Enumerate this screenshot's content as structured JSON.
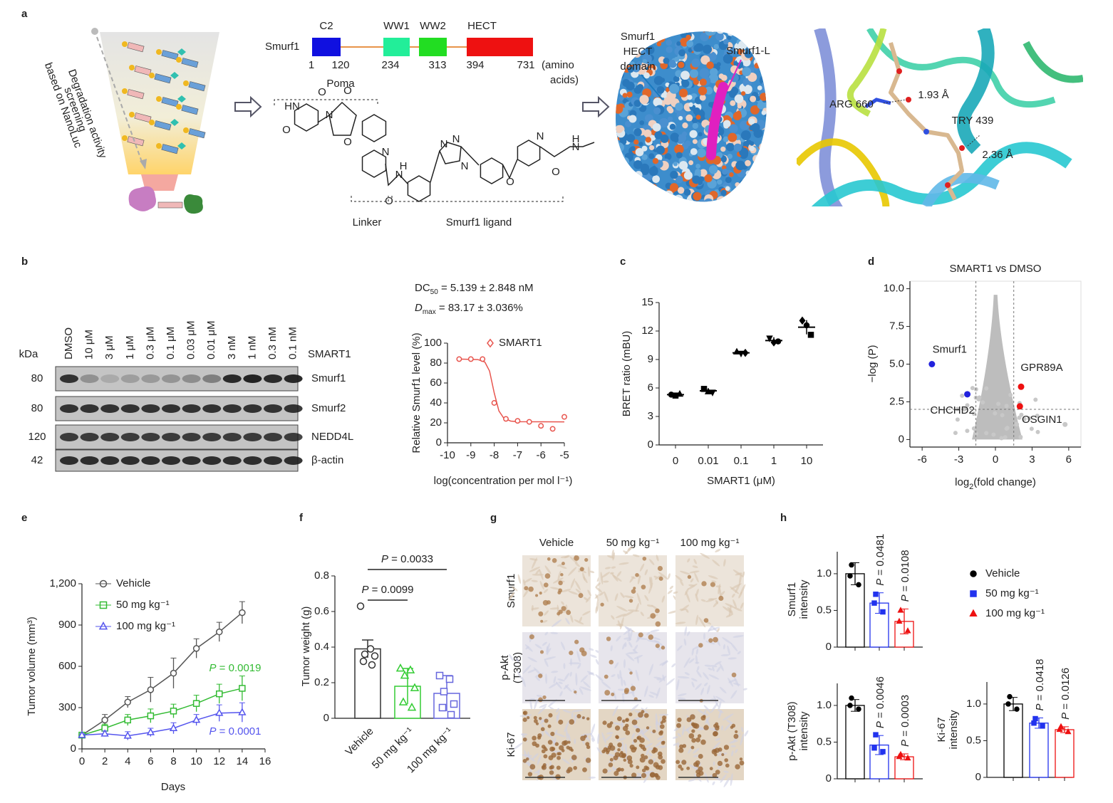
{
  "panel_labels": [
    "a",
    "b",
    "c",
    "d",
    "e",
    "f",
    "g",
    "h"
  ],
  "panel_a": {
    "screening": [
      "Degradation activity",
      "screening",
      "based on NanoLuc"
    ],
    "protein": "Smurf1",
    "domains": [
      {
        "name": "C2",
        "color": "#1010e0"
      },
      {
        "name": "WW1",
        "color": "#22ee99"
      },
      {
        "name": "WW2",
        "color": "#22dd22"
      },
      {
        "name": "HECT",
        "color": "#ee1111"
      }
    ],
    "positions": [
      1,
      120,
      234,
      313,
      394,
      731
    ],
    "position_unit": [
      "(amino",
      "acids)"
    ],
    "molecule_parts": [
      "Poma",
      "Linker",
      "Smurf1 ligand"
    ],
    "atoms": [
      "HN",
      "O",
      "O",
      "N",
      "O",
      "O",
      "N",
      "N",
      "H",
      "O",
      "N",
      "N",
      "N",
      "O",
      "N",
      "N",
      "H",
      "O"
    ],
    "surface_labels": {
      "domain": [
        "Smurf1",
        "HECT",
        "domain"
      ],
      "ligand": "Smurf1-L"
    },
    "residue_labels": [
      "ARG 660",
      "1.93 Å",
      "TRY 439",
      "2.36 Å"
    ]
  },
  "panel_b_blot": {
    "kda_label": "kDa",
    "treatment": "SMART1",
    "lanes": [
      "DMSO",
      "10 μM",
      "3 μM",
      "1 μM",
      "0.3 μM",
      "0.1 μM",
      "0.03 μM",
      "0.01 μM",
      "3 nM",
      "1 nM",
      "0.3 nM",
      "0.1 nM"
    ],
    "rows": [
      {
        "protein": "Smurf1",
        "kda": 80
      },
      {
        "protein": "Smurf2",
        "kda": 80
      },
      {
        "protein": "NEDD4L",
        "kda": 120
      },
      {
        "protein": "β-actin",
        "kda": 42
      }
    ]
  },
  "panel_g": {
    "columns": [
      "Vehicle",
      "50 mg kg⁻¹",
      "100 mg kg⁻¹"
    ],
    "rows": [
      [
        "Smurf1"
      ],
      [
        "p-Akt",
        "(T308)"
      ],
      [
        "Ki-67"
      ]
    ]
  },
  "panel_h_legend": [
    {
      "name": "Vehicle",
      "color": "#000000",
      "marker": "circle"
    },
    {
      "name": "50 mg kg⁻¹",
      "color": "#2233ee",
      "marker": "square"
    },
    {
      "name": "100 mg kg⁻¹",
      "color": "#ee1111",
      "marker": "triangle"
    }
  ],
  "chart_data": [
    {
      "type": "scatter",
      "annotations": [
        [
          "DC",
          "50",
          " = 5.139 ± 2.848 nM"
        ],
        [
          "D",
          "max",
          " = 83.17 ± 3.036%"
        ]
      ],
      "x": [
        -9.5,
        -9,
        -8.5,
        -8,
        -7.5,
        -7,
        -6.5,
        -6,
        -5.5,
        -5
      ],
      "series": [
        {
          "name": "SMART1",
          "color": "#e8554e",
          "values": [
            84,
            84,
            84,
            40,
            24,
            22,
            21,
            17,
            14,
            26
          ]
        }
      ],
      "fit": {
        "x": [
          -9.5,
          -8.7,
          -8.4,
          -8.2,
          -8.0,
          -7.8,
          -7.6,
          -7.3,
          -7,
          -5
        ],
        "values": [
          84,
          83.5,
          81,
          72,
          50,
          32,
          25,
          21.8,
          21.2,
          21
        ]
      },
      "xlabel": "log(concentration per mol l⁻¹)",
      "ylabel": "Relative Smurf1 level (%)",
      "xlim": [
        -10,
        -5
      ],
      "xticks": [
        -10,
        -9,
        -8,
        -7,
        -6,
        -5
      ],
      "ylim": [
        0,
        100
      ],
      "yticks": [
        0,
        20,
        40,
        60,
        80,
        100
      ]
    },
    {
      "type": "strip",
      "categories": [
        "0",
        "0.01",
        "0.1",
        "1",
        "10"
      ],
      "values": [
        5.3,
        5.7,
        9.7,
        11.0,
        12.4
      ],
      "errors": [
        0.15,
        0.25,
        0.2,
        0.35,
        0.75
      ],
      "points": [
        [
          5.3,
          5.2,
          5.35
        ],
        [
          5.9,
          5.6,
          5.5
        ],
        [
          9.8,
          9.6,
          9.7
        ],
        [
          11.2,
          10.8,
          10.9
        ],
        [
          13.1,
          12.6,
          11.6
        ]
      ],
      "color": "#000000",
      "xlabel": "SMART1 (μM)",
      "ylabel": "BRET ratio (mBU)",
      "ylim": [
        0,
        15
      ],
      "yticks": [
        0,
        3,
        6,
        9,
        12,
        15
      ]
    },
    {
      "type": "volcano",
      "title": "SMART1 vs DMSO",
      "series": [
        {
          "name": "Smurf1",
          "color": "#2222dd",
          "x": [
            -5.2
          ],
          "values": [
            5.0
          ]
        },
        {
          "name": "CHCHD2",
          "color": "#2222dd",
          "x": [
            -2.3
          ],
          "values": [
            3.0
          ]
        },
        {
          "name": "GPR89A",
          "color": "#ee1111",
          "x": [
            2.1
          ],
          "values": [
            3.5
          ]
        },
        {
          "name": "OSGIN1",
          "color": "#ee1111",
          "x": [
            2.0
          ],
          "values": [
            2.2
          ]
        }
      ],
      "x_thresholds": [
        -1.6,
        1.5
      ],
      "y_threshold": 2,
      "xlabel": [
        "log",
        "2",
        "(fold change)"
      ],
      "ylabel": "−log (P)",
      "xlim": [
        -7,
        7
      ],
      "xticks": [
        -6,
        -3,
        0,
        3,
        6
      ],
      "ylim": [
        -0.5,
        10.5
      ],
      "yticks": [
        0,
        2.5,
        {
          "value": 5,
          "label": "5.0"
        },
        7.5,
        {
          "value": 10,
          "label": "10.0"
        }
      ]
    },
    {
      "type": "line",
      "x": [
        0,
        2,
        4,
        6,
        8,
        10,
        12,
        14
      ],
      "series": [
        {
          "name": "Vehicle",
          "color": "#555555",
          "marker": "circle",
          "values": [
            100,
            210,
            340,
            430,
            550,
            730,
            850,
            990
          ],
          "errors": [
            15,
            40,
            40,
            90,
            110,
            70,
            70,
            80
          ]
        },
        {
          "name": "50 mg kg⁻¹",
          "color": "#33bb33",
          "marker": "square",
          "values": [
            100,
            150,
            210,
            240,
            275,
            330,
            400,
            440
          ],
          "errors": [
            20,
            30,
            40,
            50,
            50,
            60,
            70,
            90
          ]
        },
        {
          "name": "100 mg kg⁻¹",
          "color": "#5555ee",
          "marker": "triangle",
          "values": [
            100,
            110,
            95,
            120,
            150,
            210,
            260,
            265
          ],
          "errors": [
            10,
            20,
            30,
            30,
            40,
            40,
            60,
            70
          ]
        }
      ],
      "annotations": [
        {
          "text": [
            "P",
            " = 0.0019"
          ],
          "color": "#33bb33"
        },
        {
          "text": [
            "P",
            " = 0.0001"
          ],
          "color": "#5555ee"
        }
      ],
      "xlabel": "Days",
      "ylabel": "Tumor volume (mm³)",
      "xlim": [
        0,
        16
      ],
      "xticks": [
        0,
        2,
        4,
        6,
        8,
        10,
        12,
        14,
        16
      ],
      "ylim": [
        0,
        1200
      ],
      "yticks": [
        0,
        300,
        600,
        900,
        {
          "value": 1200,
          "label": "1,200"
        }
      ]
    },
    {
      "type": "bar",
      "categories": [
        "Vehicle",
        "50 mg kg⁻¹",
        "100 mg kg⁻¹"
      ],
      "values": [
        0.39,
        0.18,
        0.14
      ],
      "errors": [
        0.05,
        0.1,
        0.1
      ],
      "points": [
        [
          0.63,
          0.39,
          0.36,
          0.35,
          0.32,
          0.3
        ],
        [
          0.28,
          0.27,
          0.24,
          0.17,
          0.09,
          0.06
        ],
        [
          0.24,
          0.22,
          0.15,
          0.08,
          0.06,
          0.02
        ]
      ],
      "colors": [
        "#333333",
        "#33cc33",
        "#6666dd"
      ],
      "markers": [
        "circle",
        "triangle",
        "square"
      ],
      "significance": [
        [
          "P",
          " = 0.0099"
        ],
        [
          "P",
          " = 0.0033"
        ]
      ],
      "ylabel": "Tumor weight (g)",
      "ylim": [
        0,
        0.8
      ],
      "yticks": [
        0,
        0.2,
        0.4,
        0.6,
        0.8
      ]
    },
    {
      "type": "bar",
      "ylabel": [
        "Smurf1",
        "intensity"
      ],
      "values": [
        1.0,
        0.6,
        0.35
      ],
      "errors": [
        0.15,
        0.14,
        0.17
      ],
      "points": [
        [
          1.12,
          0.97,
          0.85
        ],
        [
          0.72,
          0.6,
          0.48
        ],
        [
          0.5,
          0.35,
          0.22
        ]
      ],
      "p_values": [
        [
          "P",
          " = 0.0481"
        ],
        [
          "P",
          " = 0.0108"
        ]
      ],
      "ylim": [
        0,
        1.3
      ],
      "yticks": [
        0,
        0.5,
        {
          "value": 1,
          "label": "1.0"
        }
      ]
    },
    {
      "type": "bar",
      "ylabel": [
        "p-Akt (T308)",
        "intensity"
      ],
      "values": [
        1.0,
        0.46,
        0.3
      ],
      "errors": [
        0.08,
        0.13,
        0.04
      ],
      "points": [
        [
          1.1,
          1.0,
          0.95
        ],
        [
          0.6,
          0.42,
          0.37
        ],
        [
          0.33,
          0.3,
          0.28
        ]
      ],
      "p_values": [
        [
          "P",
          " = 0.0046"
        ],
        [
          "P",
          " = 0.0003"
        ]
      ],
      "ylim": [
        0,
        1.3
      ],
      "yticks": [
        0,
        0.5,
        {
          "value": 1,
          "label": "1.0"
        }
      ]
    },
    {
      "type": "bar",
      "ylabel": [
        "Ki-67",
        "intensity"
      ],
      "values": [
        1.0,
        0.74,
        0.65
      ],
      "errors": [
        0.09,
        0.07,
        0.04
      ],
      "points": [
        [
          1.1,
          1.0,
          0.93
        ],
        [
          0.8,
          0.74,
          0.7
        ],
        [
          0.69,
          0.65,
          0.62
        ]
      ],
      "p_values": [
        [
          "P",
          " = 0.0418"
        ],
        [
          "P",
          " = 0.0126"
        ]
      ],
      "ylim": [
        0,
        1.3
      ],
      "yticks": [
        0,
        0.5,
        {
          "value": 1,
          "label": "1.0"
        }
      ]
    }
  ]
}
